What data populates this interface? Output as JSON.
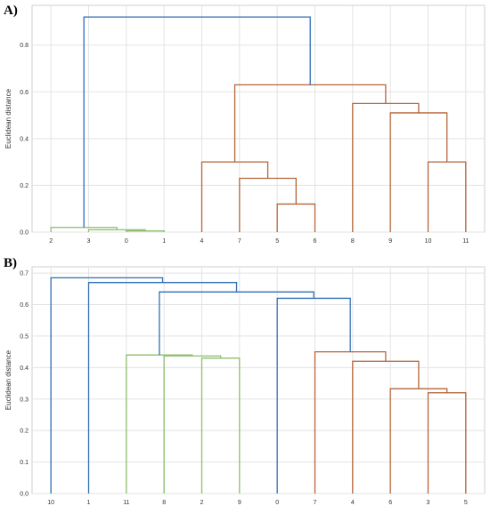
{
  "chart_data": [
    {
      "type": "dendrogram",
      "panel": "A)",
      "ylabel": "Euclidean distance",
      "ylim": [
        0,
        0.97
      ],
      "yticks": [
        "0.0",
        "0.2",
        "0.4",
        "0.6",
        "0.8"
      ],
      "ytick_values": [
        0,
        0.2,
        0.4,
        0.6,
        0.8
      ],
      "leaves": [
        "2",
        "3",
        "0",
        "1",
        "4",
        "7",
        "5",
        "6",
        "8",
        "9",
        "10",
        "11"
      ],
      "grid": true,
      "colors": {
        "green": "#8fbe6e",
        "brown": "#b5653a",
        "blue": "#2f6fb5"
      },
      "links": [
        {
          "a": 2,
          "b": 3,
          "h": 0.005,
          "color": "green"
        },
        {
          "a": 1,
          "b": "n0",
          "h": 0.01,
          "color": "green"
        },
        {
          "a": 0,
          "b": "n1",
          "h": 0.02,
          "color": "green"
        },
        {
          "a": 6,
          "b": 7,
          "h": 0.12,
          "color": "brown"
        },
        {
          "a": 5,
          "b": "n3",
          "h": 0.23,
          "color": "brown"
        },
        {
          "a": 4,
          "b": "n4",
          "h": 0.3,
          "color": "brown"
        },
        {
          "a": 10,
          "b": 11,
          "h": 0.3,
          "color": "brown"
        },
        {
          "a": 9,
          "b": "n6",
          "h": 0.51,
          "color": "brown"
        },
        {
          "a": 8,
          "b": "n7",
          "h": 0.55,
          "color": "brown"
        },
        {
          "a": "n5",
          "b": "n8",
          "h": 0.63,
          "color": "brown"
        },
        {
          "a": "n2",
          "b": "n9",
          "h": 0.92,
          "color": "blue"
        }
      ]
    },
    {
      "type": "dendrogram",
      "panel": "B)",
      "ylabel": "Euclidean distance",
      "ylim": [
        0,
        0.72
      ],
      "yticks": [
        "0.0",
        "0.1",
        "0.2",
        "0.3",
        "0.4",
        "0.5",
        "0.6",
        "0.7"
      ],
      "ytick_values": [
        0,
        0.1,
        0.2,
        0.3,
        0.4,
        0.5,
        0.6,
        0.7
      ],
      "leaves": [
        "10",
        "1",
        "11",
        "8",
        "2",
        "9",
        "0",
        "7",
        "4",
        "6",
        "3",
        "5"
      ],
      "grid": true,
      "colors": {
        "green": "#8fbe6e",
        "brown": "#b5653a",
        "blue": "#2f6fb5"
      },
      "links": [
        {
          "a": 4,
          "b": 5,
          "h": 0.43,
          "color": "green"
        },
        {
          "a": 3,
          "b": "n0",
          "h": 0.437,
          "color": "green"
        },
        {
          "a": 2,
          "b": "n1",
          "h": 0.44,
          "color": "green"
        },
        {
          "a": 10,
          "b": 11,
          "h": 0.32,
          "color": "brown"
        },
        {
          "a": 9,
          "b": "n3",
          "h": 0.333,
          "color": "brown"
        },
        {
          "a": 8,
          "b": "n4",
          "h": 0.42,
          "color": "brown"
        },
        {
          "a": 7,
          "b": "n5",
          "h": 0.45,
          "color": "brown"
        },
        {
          "a": 6,
          "b": "n6",
          "h": 0.62,
          "color": "blue"
        },
        {
          "a": "n2",
          "b": "n7",
          "h": 0.64,
          "color": "blue"
        },
        {
          "a": 1,
          "b": "n8",
          "h": 0.67,
          "color": "blue"
        },
        {
          "a": 0,
          "b": "n9",
          "h": 0.685,
          "color": "blue"
        }
      ]
    }
  ]
}
